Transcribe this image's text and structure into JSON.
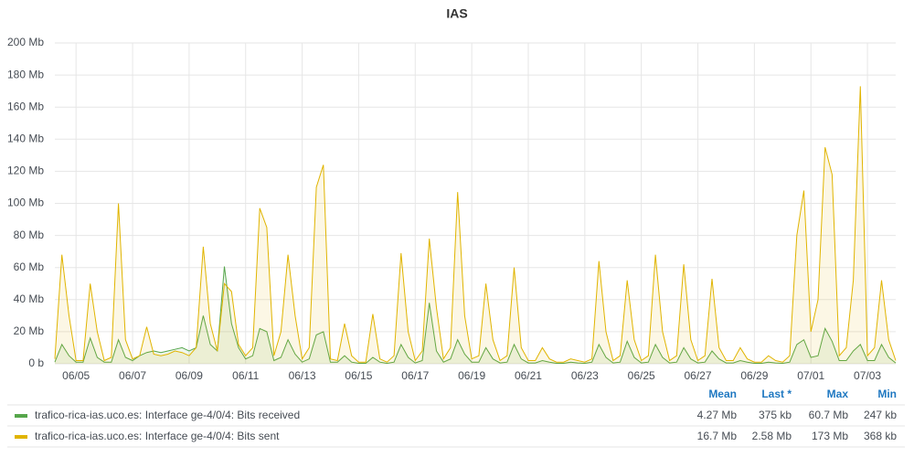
{
  "chart_data": {
    "type": "line",
    "title": "IAS",
    "categories": [
      null,
      null,
      null,
      "06/05",
      null,
      null,
      null,
      null,
      null,
      null,
      null,
      "06/07",
      null,
      null,
      null,
      null,
      null,
      null,
      null,
      "06/09",
      null,
      null,
      null,
      null,
      null,
      null,
      null,
      "06/11",
      null,
      null,
      null,
      null,
      null,
      null,
      null,
      "06/13",
      null,
      null,
      null,
      null,
      null,
      null,
      null,
      "06/15",
      null,
      null,
      null,
      null,
      null,
      null,
      null,
      "06/17",
      null,
      null,
      null,
      null,
      null,
      null,
      null,
      "06/19",
      null,
      null,
      null,
      null,
      null,
      null,
      null,
      "06/21",
      null,
      null,
      null,
      null,
      null,
      null,
      null,
      "06/23",
      null,
      null,
      null,
      null,
      null,
      null,
      null,
      "06/25",
      null,
      null,
      null,
      null,
      null,
      null,
      null,
      "06/27",
      null,
      null,
      null,
      null,
      null,
      null,
      null,
      "06/29",
      null,
      null,
      null,
      null,
      null,
      null,
      null,
      "07/01",
      null,
      null,
      null,
      null,
      null,
      null,
      null,
      "07/03",
      null,
      null,
      null,
      null
    ],
    "series": [
      {
        "name": "trafico-rica-ias.uco.es: Interface ge-4/0/4: Bits received",
        "color": "#56a64b",
        "stats": [
          "4.27 Mb",
          "375 kb",
          "60.7 Mb",
          "247 kb"
        ],
        "values": [
          1,
          12,
          5,
          1,
          1,
          16,
          4,
          1,
          1,
          15,
          4,
          2,
          5,
          7,
          8,
          7,
          8,
          9,
          10,
          8,
          10,
          30,
          12,
          8,
          60.7,
          25,
          10,
          3,
          5,
          22,
          20,
          2,
          4,
          15,
          6,
          1,
          3,
          18,
          20,
          1,
          1,
          5,
          1,
          0.3,
          0.3,
          4,
          1,
          0.3,
          1,
          12,
          4,
          0.5,
          2,
          38,
          8,
          1,
          3,
          15,
          6,
          1,
          1,
          10,
          3,
          0.5,
          1,
          12,
          3,
          0.5,
          0.5,
          2,
          1,
          0.3,
          0.3,
          1,
          0.5,
          0.3,
          1,
          12,
          4,
          0.5,
          1,
          14,
          4,
          0.5,
          1,
          12,
          4,
          0.5,
          1,
          10,
          3,
          0.5,
          1,
          8,
          3,
          0.5,
          0.5,
          2,
          1,
          0.3,
          0.3,
          1,
          0.5,
          0.3,
          1,
          12,
          15,
          4,
          5,
          22,
          14,
          2,
          2,
          8,
          12,
          2,
          2,
          12,
          4,
          0.5
        ]
      },
      {
        "name": "trafico-rica-ias.uco.es: Interface ge-4/0/4: Bits sent",
        "color": "#e0b400",
        "stats": [
          "16.7 Mb",
          "2.58 Mb",
          "173 Mb",
          "368 kb"
        ],
        "values": [
          3,
          68,
          30,
          2,
          2,
          50,
          20,
          2,
          4,
          100,
          15,
          3,
          5,
          23,
          6,
          5,
          6,
          8,
          7,
          5,
          10,
          73,
          25,
          8,
          50,
          45,
          12,
          5,
          10,
          97,
          85,
          5,
          20,
          68,
          30,
          3,
          10,
          110,
          124,
          3,
          2,
          25,
          5,
          1,
          1,
          31,
          3,
          1,
          5,
          69,
          20,
          2,
          8,
          78,
          35,
          3,
          10,
          107,
          30,
          3,
          5,
          50,
          15,
          2,
          5,
          60,
          10,
          2,
          2,
          10,
          3,
          1,
          1,
          3,
          2,
          1,
          3,
          64,
          20,
          2,
          5,
          52,
          15,
          2,
          5,
          68,
          20,
          2,
          5,
          62,
          15,
          2,
          5,
          53,
          10,
          2,
          2,
          10,
          3,
          1,
          1,
          5,
          2,
          1,
          5,
          80,
          108,
          20,
          40,
          135,
          118,
          5,
          10,
          52,
          173,
          5,
          10,
          52,
          15,
          2
        ]
      }
    ],
    "ylim": [
      0,
      200
    ],
    "yticks": [
      {
        "value": 0,
        "label": "0 b"
      },
      {
        "value": 20,
        "label": "20 Mb"
      },
      {
        "value": 40,
        "label": "40 Mb"
      },
      {
        "value": 60,
        "label": "60 Mb"
      },
      {
        "value": 80,
        "label": "80 Mb"
      },
      {
        "value": 100,
        "label": "100 Mb"
      },
      {
        "value": 120,
        "label": "120 Mb"
      },
      {
        "value": 140,
        "label": "140 Mb"
      },
      {
        "value": 160,
        "label": "160 Mb"
      },
      {
        "value": 180,
        "label": "180 Mb"
      },
      {
        "value": 200,
        "label": "200 Mb"
      }
    ],
    "grid": true,
    "legend_columns": [
      "Mean",
      "Last *",
      "Max",
      "Min"
    ]
  }
}
